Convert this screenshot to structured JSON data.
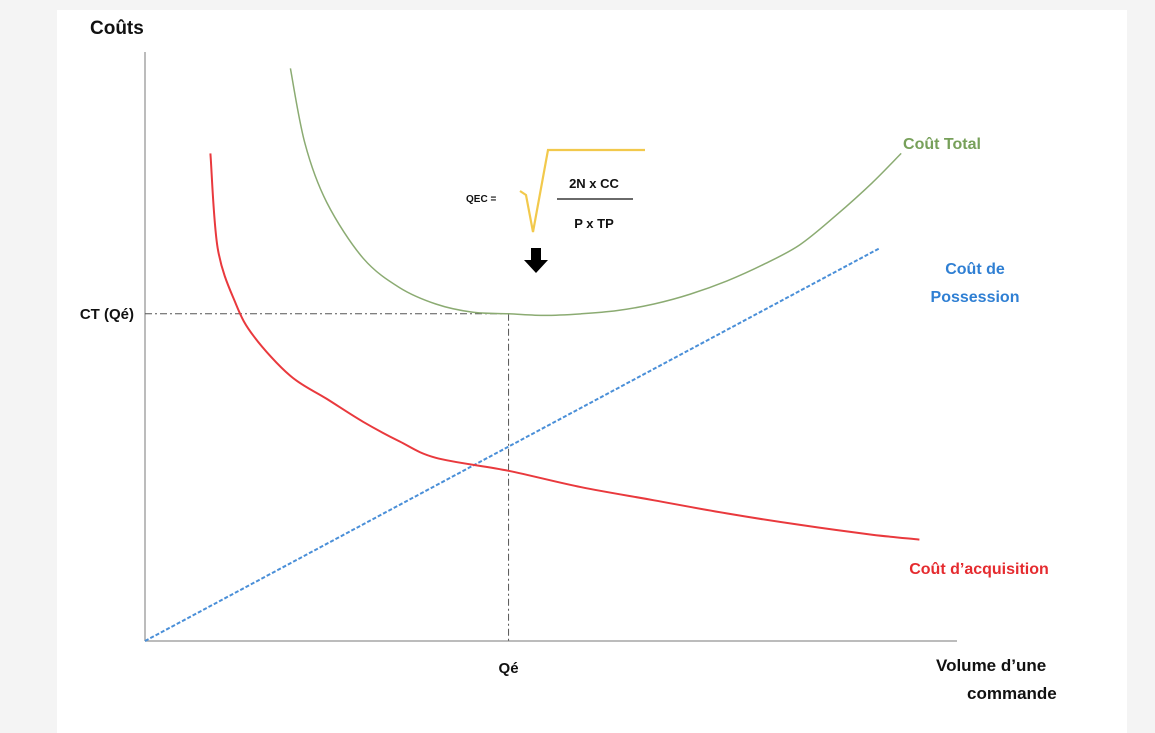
{
  "chart_data": {
    "type": "line",
    "y_axis_label": "Coûts",
    "x_axis_label_lines": [
      "Volume d’une",
      "commande"
    ],
    "x_ticks": [
      {
        "label": "Qé",
        "x": 1
      }
    ],
    "y_ticks": [
      {
        "label": "CT (Qé)",
        "y": 1
      }
    ],
    "xlim": [
      0,
      2.25
    ],
    "ylim": [
      0,
      1.8
    ],
    "grid": false,
    "series": [
      {
        "name": "Coût Total",
        "label_lines": [
          "Coût Total"
        ],
        "color": "#8bab72",
        "style": "solid",
        "points": [
          [
            0.4,
            1.75
          ],
          [
            0.44,
            1.52
          ],
          [
            0.5,
            1.34
          ],
          [
            0.6,
            1.17
          ],
          [
            0.7,
            1.08
          ],
          [
            0.8,
            1.03
          ],
          [
            0.9,
            1.005
          ],
          [
            1.0,
            1.0
          ],
          [
            1.1,
            0.995
          ],
          [
            1.2,
            1.0
          ],
          [
            1.3,
            1.01
          ],
          [
            1.4,
            1.03
          ],
          [
            1.5,
            1.06
          ],
          [
            1.6,
            1.1
          ],
          [
            1.7,
            1.15
          ],
          [
            1.8,
            1.21
          ],
          [
            1.9,
            1.3
          ],
          [
            2.0,
            1.4
          ],
          [
            2.08,
            1.49
          ]
        ]
      },
      {
        "name": "Coût de Possession",
        "label_lines": [
          "Coût de",
          "Possession"
        ],
        "color": "#4a8fd8",
        "style": "dashed",
        "points": [
          [
            0.0,
            0.0
          ],
          [
            2.02,
            1.2
          ]
        ]
      },
      {
        "name": "Coût d’acquisition",
        "label_lines": [
          "Coût d’acquisition"
        ],
        "color": "#e9393d",
        "style": "solid",
        "points": [
          [
            0.18,
            1.49
          ],
          [
            0.2,
            1.2
          ],
          [
            0.25,
            1.03
          ],
          [
            0.3,
            0.93
          ],
          [
            0.4,
            0.81
          ],
          [
            0.5,
            0.74
          ],
          [
            0.6,
            0.67
          ],
          [
            0.7,
            0.61
          ],
          [
            0.8,
            0.56
          ],
          [
            1.0,
            0.52
          ],
          [
            1.2,
            0.47
          ],
          [
            1.4,
            0.43
          ],
          [
            1.6,
            0.39
          ],
          [
            1.8,
            0.355
          ],
          [
            2.0,
            0.325
          ],
          [
            2.13,
            0.31
          ]
        ]
      }
    ],
    "annotation": {
      "lhs": "QEC =",
      "numerator": "2N x CC",
      "denominator": "P x TP",
      "radical_color": "#f2c94c",
      "arrow_color": "#000000"
    }
  }
}
